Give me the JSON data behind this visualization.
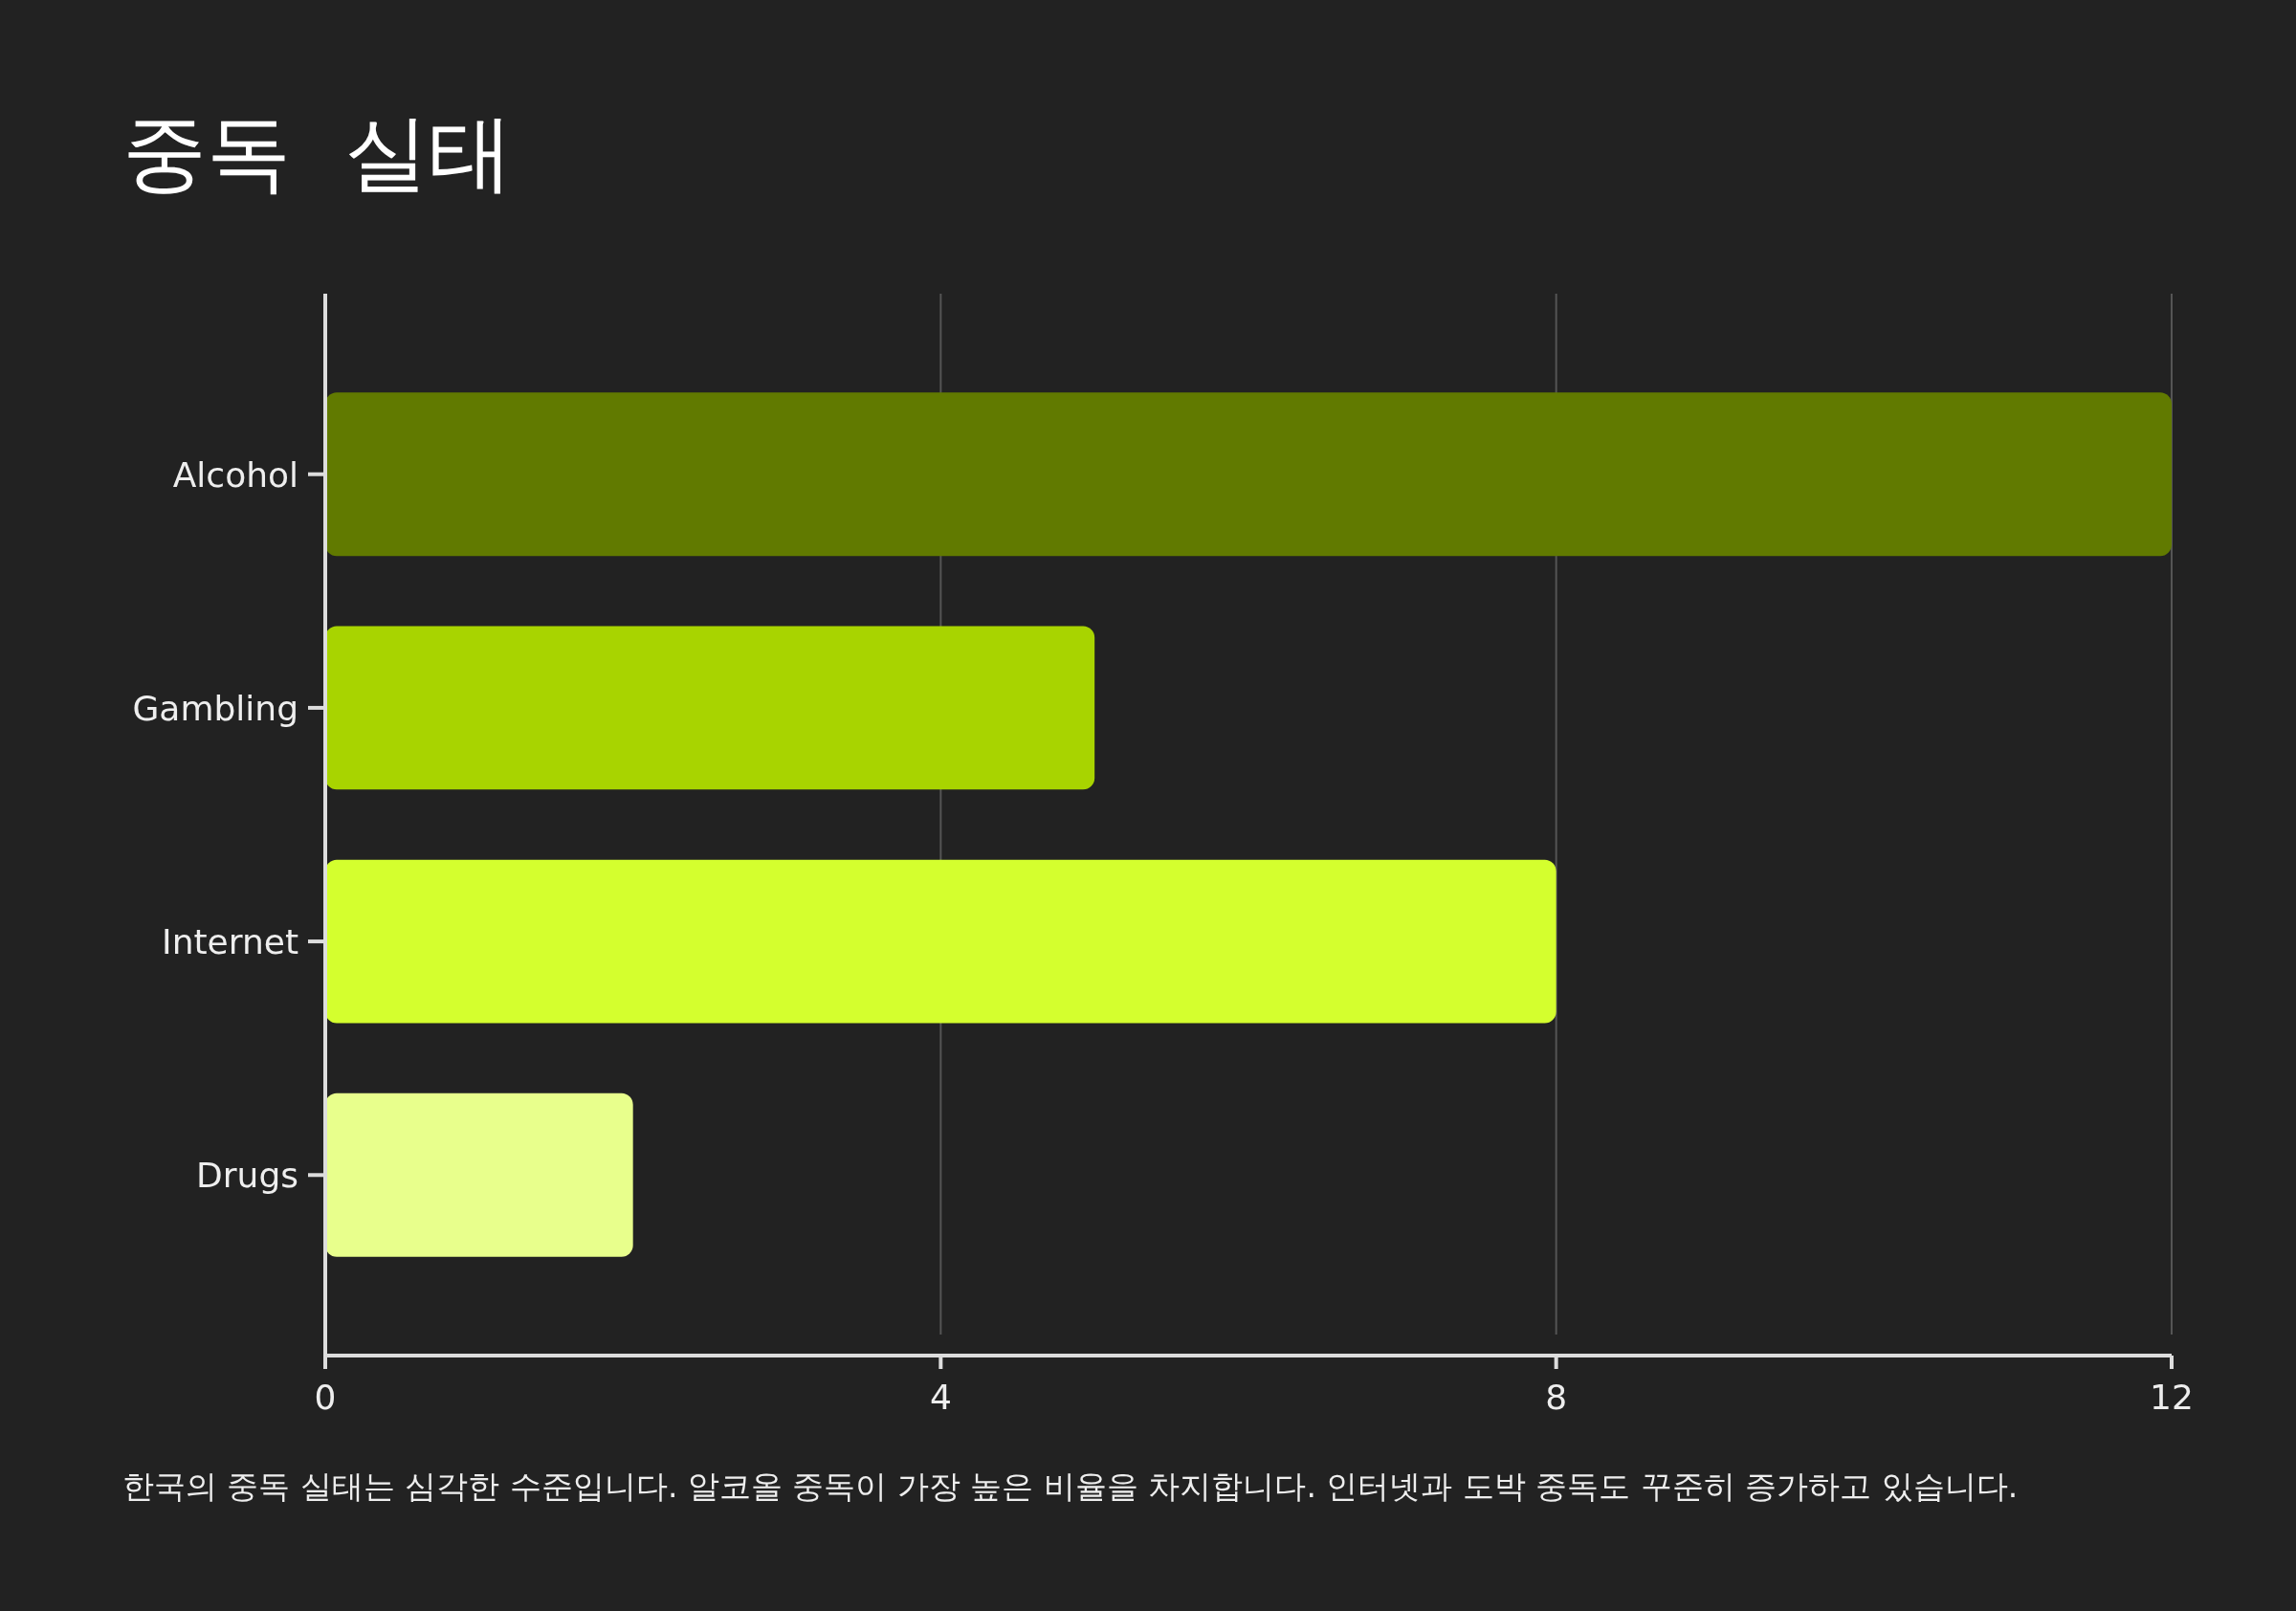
{
  "chart_data": {
    "type": "bar",
    "orientation": "horizontal",
    "title": "중독  실태",
    "categories": [
      "Alcohol",
      "Gambling",
      "Internet",
      "Drugs"
    ],
    "values": [
      12,
      5,
      8,
      2
    ],
    "colors": [
      "#617a00",
      "#a8d400",
      "#d4ff2e",
      "#e8ff8c"
    ],
    "xlim": [
      0,
      12
    ],
    "xticks": [
      0,
      4,
      8,
      12
    ],
    "grid": "x",
    "annotations": [
      "한국의 중독 실태는 심각한 수준입니다. 알코올 중독이 가장 높은 비율을 차지합니다. 인터넷과 도박 중독도 꾸준히 증가하고 있습니다."
    ]
  }
}
